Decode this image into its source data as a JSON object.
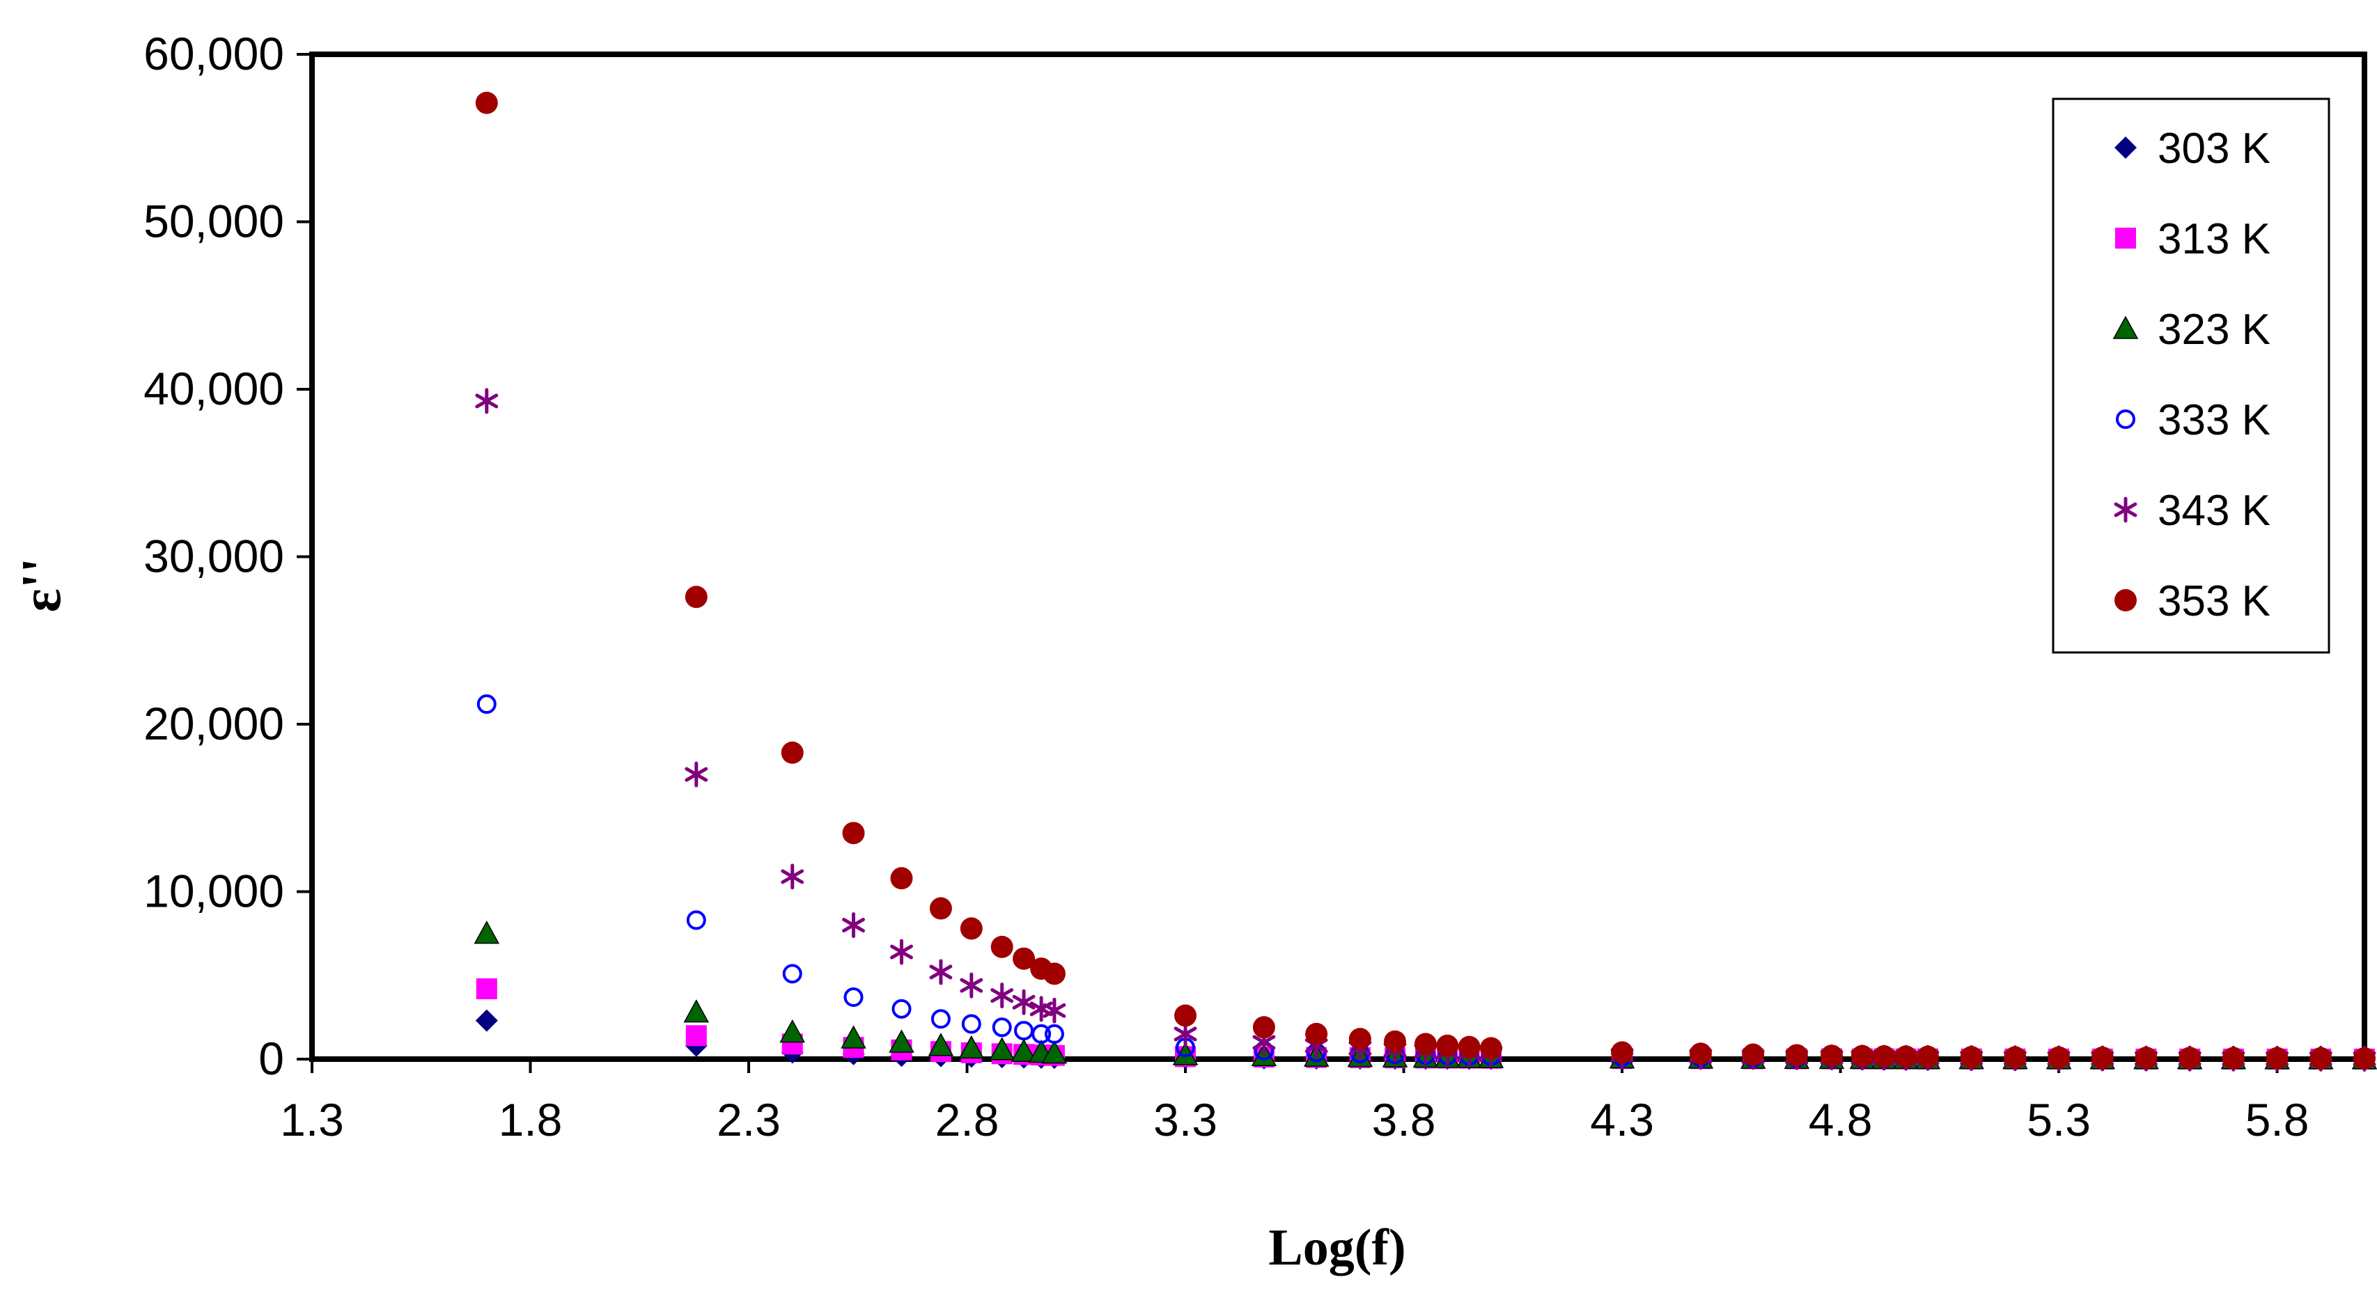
{
  "chart_data": {
    "type": "scatter",
    "title": "",
    "xlabel": "Log(f)",
    "ylabel": "ε''",
    "xlim": [
      1.3,
      6.0
    ],
    "ylim": [
      0,
      60000
    ],
    "x_ticks": [
      1.3,
      1.8,
      2.3,
      2.8,
      3.3,
      3.8,
      4.3,
      4.8,
      5.3,
      5.8
    ],
    "x_tick_labels": [
      "1.3",
      "1.8",
      "2.3",
      "2.8",
      "3.3",
      "3.8",
      "4.3",
      "4.8",
      "5.3",
      "5.8"
    ],
    "y_ticks": [
      0,
      10000,
      20000,
      30000,
      40000,
      50000,
      60000
    ],
    "y_tick_labels": [
      "0",
      "10,000",
      "20,000",
      "30,000",
      "40,000",
      "50,000",
      "60,000"
    ],
    "grid": false,
    "legend_position": "top-right",
    "x": [
      1.7,
      2.18,
      2.4,
      2.54,
      2.65,
      2.74,
      2.81,
      2.88,
      2.93,
      2.97,
      3.0,
      3.3,
      3.48,
      3.6,
      3.7,
      3.78,
      3.85,
      3.9,
      3.95,
      4.0,
      4.3,
      4.48,
      4.6,
      4.7,
      4.78,
      4.85,
      4.9,
      4.95,
      5.0,
      5.1,
      5.2,
      5.3,
      5.4,
      5.5,
      5.6,
      5.7,
      5.8,
      5.9,
      6.0
    ],
    "series": [
      {
        "name": "303 K",
        "marker": "diamond",
        "color": "#000080",
        "values": [
          2300,
          800,
          400,
          300,
          200,
          180,
          150,
          120,
          100,
          90,
          80,
          60,
          50,
          40,
          35,
          30,
          28,
          25,
          22,
          20,
          15,
          12,
          10,
          9,
          8,
          7,
          6,
          6,
          5,
          5,
          4,
          4,
          3,
          3,
          3,
          2,
          2,
          2,
          2
        ]
      },
      {
        "name": "313 K",
        "marker": "square",
        "color": "#ff00ff",
        "values": [
          4200,
          1400,
          900,
          700,
          550,
          450,
          380,
          320,
          280,
          250,
          220,
          150,
          120,
          100,
          85,
          75,
          65,
          60,
          55,
          50,
          35,
          28,
          24,
          20,
          18,
          16,
          14,
          13,
          12,
          10,
          9,
          8,
          7,
          6,
          6,
          5,
          5,
          4,
          4
        ]
      },
      {
        "name": "323 K",
        "marker": "triangle",
        "color": "#006400",
        "values": [
          7500,
          2800,
          1600,
          1250,
          1000,
          800,
          650,
          550,
          450,
          400,
          350,
          250,
          190,
          160,
          140,
          120,
          105,
          95,
          90,
          80,
          55,
          45,
          38,
          32,
          28,
          25,
          22,
          20,
          18,
          16,
          14,
          12,
          11,
          10,
          9,
          8,
          7,
          6,
          6
        ]
      },
      {
        "name": "333 K",
        "marker": "circle-open",
        "color": "#0000ff",
        "values": [
          21200,
          8300,
          5100,
          3700,
          3000,
          2400,
          2100,
          1900,
          1700,
          1500,
          1500,
          700,
          500,
          400,
          330,
          280,
          240,
          210,
          190,
          170,
          110,
          90,
          75,
          65,
          58,
          52,
          47,
          43,
          40,
          35,
          30,
          27,
          24,
          21,
          19,
          17,
          15,
          14,
          13
        ]
      },
      {
        "name": "343 K",
        "marker": "asterisk",
        "color": "#800080",
        "values": [
          39300,
          17000,
          10900,
          8000,
          6400,
          5200,
          4400,
          3800,
          3400,
          3000,
          2900,
          1500,
          1000,
          800,
          650,
          550,
          470,
          420,
          380,
          350,
          220,
          170,
          140,
          120,
          105,
          95,
          85,
          78,
          72,
          62,
          54,
          48,
          43,
          38,
          34,
          31,
          28,
          26,
          24
        ]
      },
      {
        "name": "353 K",
        "marker": "circle-filled",
        "color": "#a00000",
        "values": [
          57100,
          27600,
          18300,
          13500,
          10800,
          9000,
          7800,
          6700,
          6000,
          5400,
          5100,
          2600,
          1900,
          1500,
          1200,
          1050,
          900,
          800,
          720,
          650,
          400,
          320,
          270,
          230,
          200,
          180,
          165,
          150,
          140,
          120,
          105,
          95,
          85,
          76,
          68,
          62,
          56,
          52,
          48
        ]
      }
    ]
  }
}
